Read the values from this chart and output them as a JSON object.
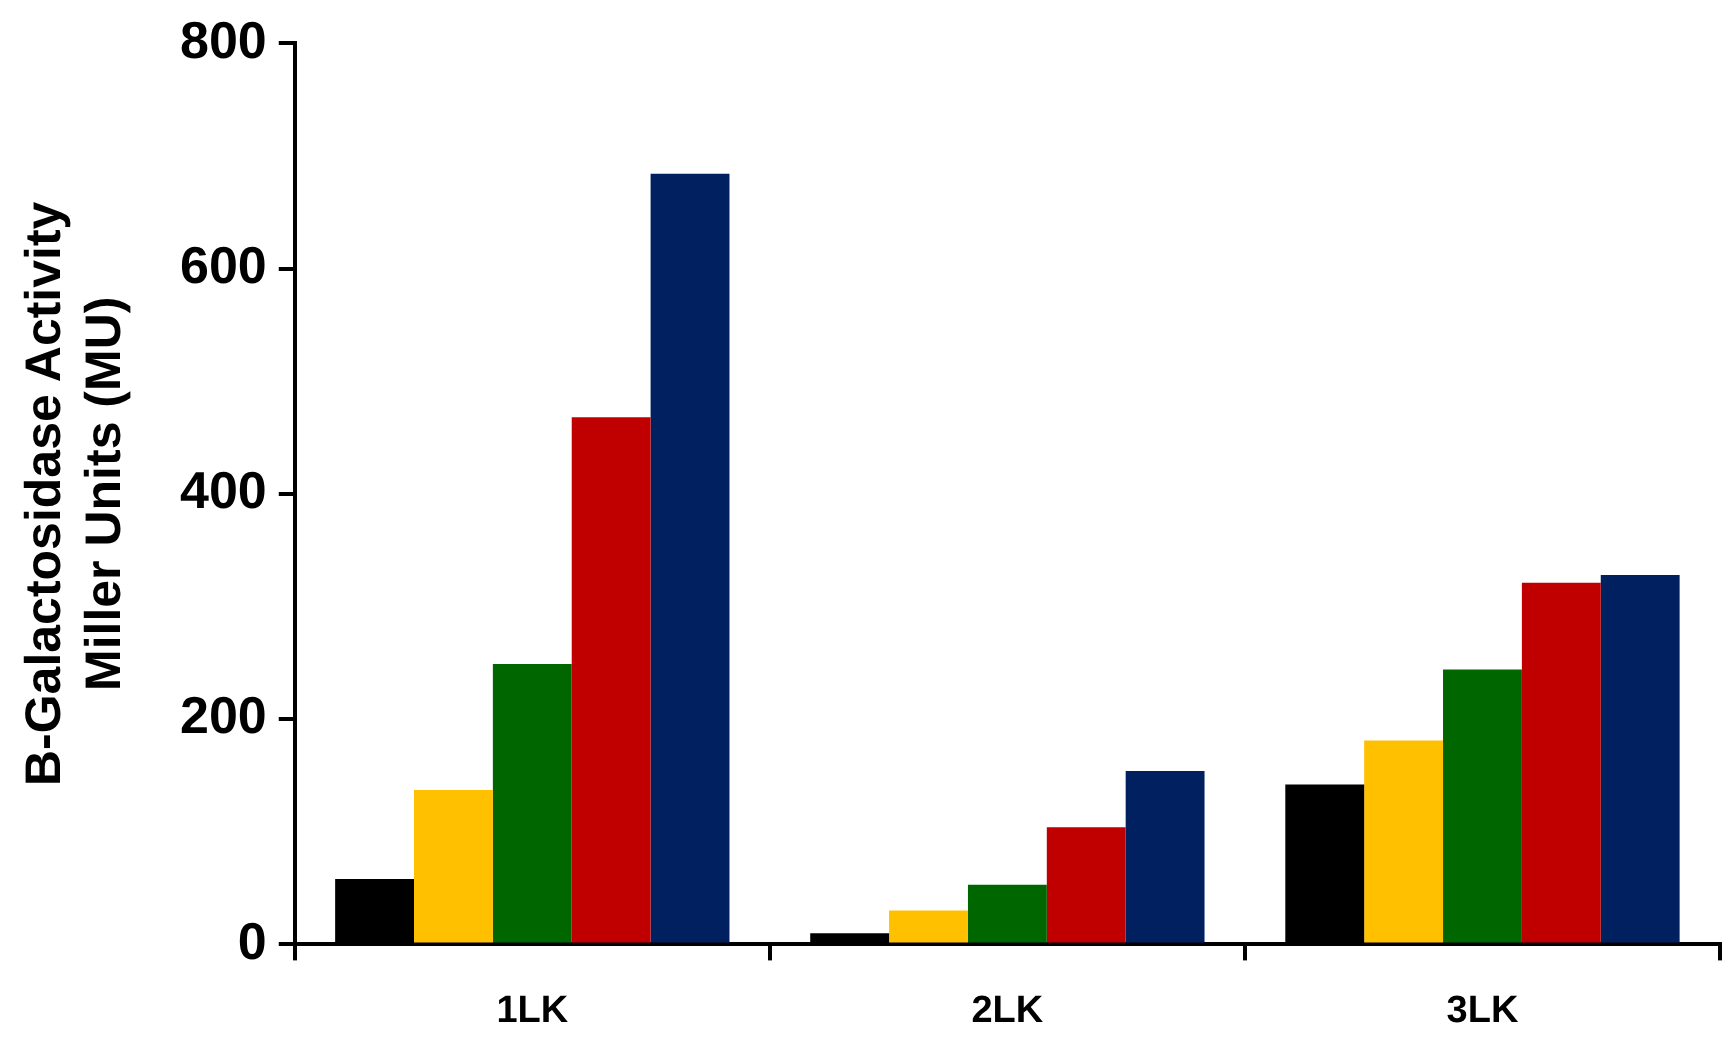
{
  "chart_data": {
    "type": "bar",
    "ylabel": "B-Galactosidase Activity\nMiller Units (MU)",
    "categories": [
      "1LK",
      "2LK",
      "3LK"
    ],
    "series": [
      {
        "color": "#000000",
        "values": [
          58,
          10,
          142
        ]
      },
      {
        "color": "#ffc000",
        "values": [
          137,
          30,
          181
        ]
      },
      {
        "color": "#006600",
        "values": [
          249,
          53,
          244
        ]
      },
      {
        "color": "#c00000",
        "values": [
          468,
          104,
          321
        ]
      },
      {
        "color": "#002060",
        "values": [
          684,
          154,
          328
        ]
      }
    ],
    "ylim": [
      0,
      800
    ],
    "yticks": [
      0,
      200,
      400,
      600,
      800
    ],
    "grid": false,
    "legend": false
  }
}
